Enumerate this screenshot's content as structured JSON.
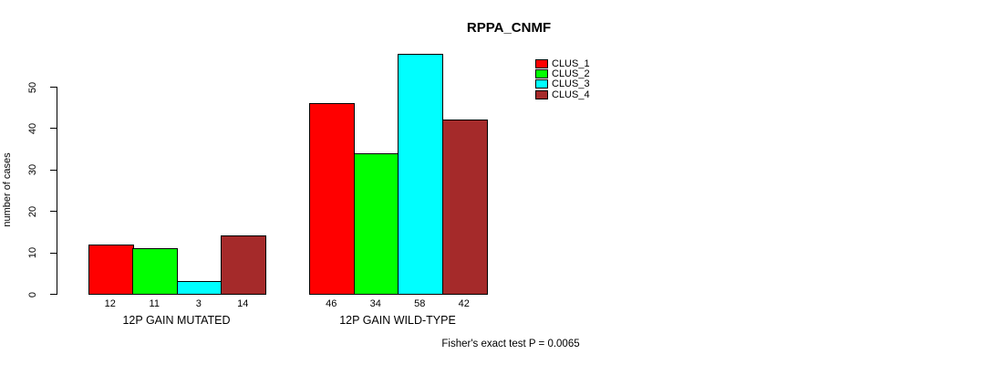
{
  "chart_data": {
    "type": "bar",
    "title": "RPPA_CNMF",
    "ylabel": "number of cases",
    "xlabel": "",
    "ylim": [
      0,
      50
    ],
    "yticks": [
      0,
      10,
      20,
      30,
      40,
      50
    ],
    "grid": false,
    "legend_position": "top-right",
    "legend_entries": [
      "CLUS_1",
      "CLUS_2",
      "CLUS_3",
      "CLUS_4"
    ],
    "categories": [
      "12P GAIN MUTATED",
      "12P GAIN WILD-TYPE"
    ],
    "series": [
      {
        "name": "CLUS_1",
        "color": "#FF0000",
        "values": [
          12,
          46
        ]
      },
      {
        "name": "CLUS_2",
        "color": "#00FF00",
        "values": [
          11,
          34
        ]
      },
      {
        "name": "CLUS_3",
        "color": "#00FFFF",
        "values": [
          3,
          58
        ]
      },
      {
        "name": "CLUS_4",
        "color": "#A52A2A",
        "values": [
          14,
          42
        ]
      }
    ],
    "bar_value_labels": true,
    "annotation": "Fisher's exact test P = 0.0065"
  },
  "colors": {
    "background": "#FFFFFF",
    "axis": "#000000",
    "bar_border": "#000000",
    "text": "#000000"
  }
}
